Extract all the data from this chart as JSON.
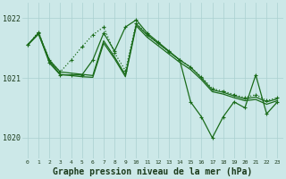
{
  "bg_color": "#cce8e8",
  "grid_color": "#aad0d0",
  "line_color": "#1a6b1a",
  "xlabel": "Graphe pression niveau de la mer (hPa)",
  "xlabel_fontsize": 7.0,
  "ylim": [
    1019.65,
    1022.25
  ],
  "yticks": [
    1020,
    1021,
    1022
  ],
  "xticks": [
    0,
    1,
    2,
    3,
    4,
    5,
    6,
    7,
    8,
    9,
    10,
    11,
    12,
    13,
    14,
    15,
    16,
    17,
    18,
    19,
    20,
    21,
    22,
    23
  ],
  "y_jagged": [
    1021.55,
    1021.75,
    1021.25,
    1021.05,
    1021.05,
    1021.05,
    1021.3,
    1021.75,
    1021.45,
    1021.85,
    1021.97,
    1021.75,
    1021.6,
    1021.45,
    1021.3,
    1020.6,
    1020.35,
    1020.0,
    1020.35,
    1020.6,
    1020.5,
    1021.05,
    1020.4,
    1020.6
  ],
  "y_dotted": [
    1021.55,
    1021.77,
    1021.3,
    1021.1,
    1021.3,
    1021.52,
    1021.72,
    1021.85,
    1021.42,
    1021.12,
    1021.92,
    1021.72,
    1021.58,
    1021.44,
    1021.3,
    1021.18,
    1021.02,
    1020.82,
    1020.78,
    1020.72,
    1020.67,
    1020.72,
    1020.62,
    1020.67
  ],
  "y_smooth1": [
    1021.55,
    1021.75,
    1021.3,
    1021.1,
    1021.08,
    1021.06,
    1021.04,
    1021.62,
    1021.35,
    1021.05,
    1021.9,
    1021.72,
    1021.58,
    1021.44,
    1021.3,
    1021.18,
    1021.0,
    1020.8,
    1020.76,
    1020.7,
    1020.65,
    1020.68,
    1020.6,
    1020.65
  ],
  "y_smooth2": [
    1021.55,
    1021.73,
    1021.28,
    1021.06,
    1021.04,
    1021.02,
    1021.01,
    1021.58,
    1021.32,
    1021.02,
    1021.87,
    1021.68,
    1021.54,
    1021.4,
    1021.26,
    1021.14,
    1020.97,
    1020.77,
    1020.73,
    1020.67,
    1020.62,
    1020.64,
    1020.56,
    1020.62
  ]
}
